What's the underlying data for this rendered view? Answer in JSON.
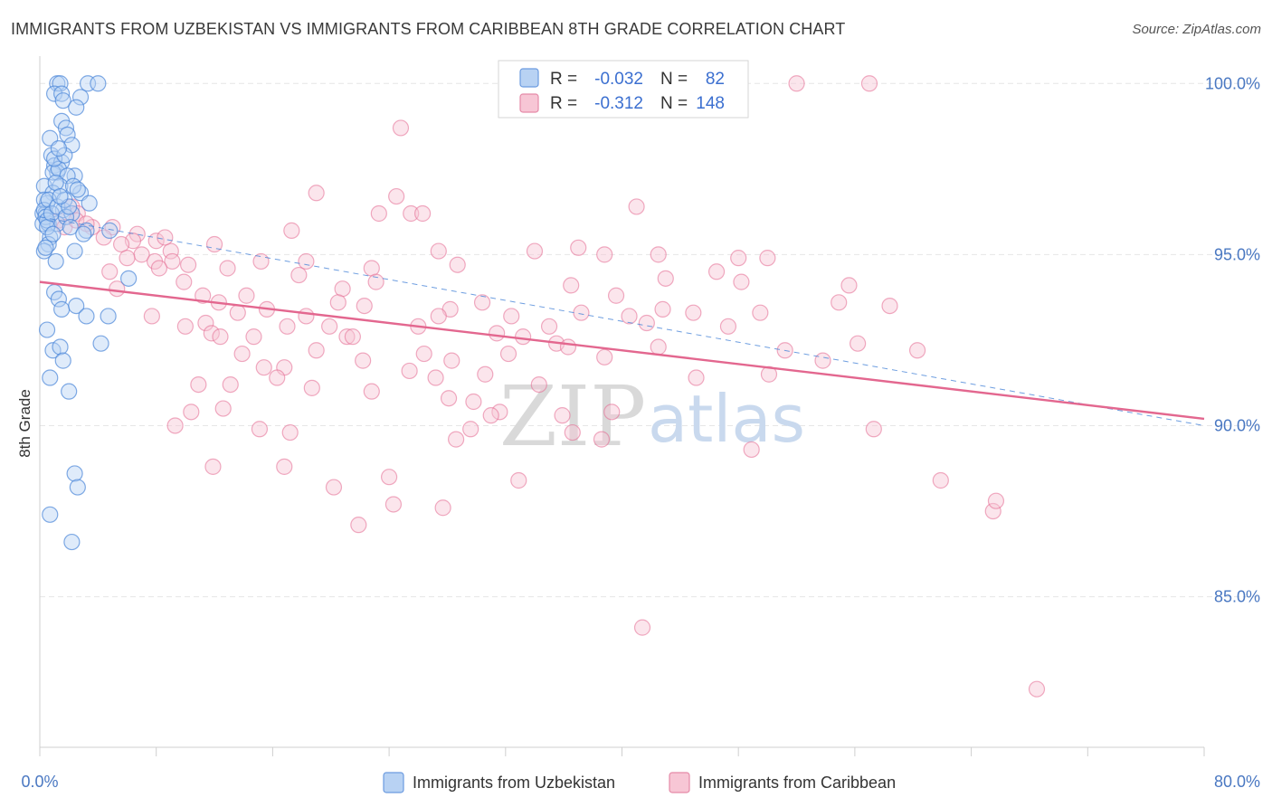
{
  "title": "IMMIGRANTS FROM UZBEKISTAN VS IMMIGRANTS FROM CARIBBEAN 8TH GRADE CORRELATION CHART",
  "source": "Source: ZipAtlas.com",
  "watermark": {
    "zip": "ZIP",
    "atlas": "atlas"
  },
  "colors": {
    "blue": "#4a86d8",
    "blue_fill": "#b8d2f3",
    "pink": "#e3678f",
    "pink_fill": "#f7c6d5",
    "axis_text": "#4a78c2",
    "grid": "#e6e6e6"
  },
  "stats": {
    "r_label": "R =",
    "n_label": "N =",
    "series1": {
      "r": "-0.032",
      "n": "82"
    },
    "series2": {
      "r": "-0.312",
      "n": "148"
    }
  },
  "chart_data": {
    "type": "scatter",
    "title": "IMMIGRANTS FROM UZBEKISTAN VS IMMIGRANTS FROM CARIBBEAN 8TH GRADE CORRELATION CHART",
    "xlabel": "",
    "ylabel": "8th Grade",
    "xlim": [
      0,
      80
    ],
    "ylim": [
      80.6,
      100.8
    ],
    "x_tick_labels": [
      "0.0%",
      "80.0%"
    ],
    "y_ticks": [
      85,
      90,
      95,
      100
    ],
    "y_tick_labels": [
      "85.0%",
      "90.0%",
      "95.0%",
      "100.0%"
    ],
    "legend": [
      "Immigrants from Uzbekistan",
      "Immigrants from Caribbean"
    ],
    "series": [
      {
        "name": "Immigrants from Uzbekistan",
        "color": "#4a86d8",
        "trend": {
          "x": [
            0,
            80
          ],
          "y": [
            96.1,
            90.0
          ],
          "style": "dashed"
        },
        "points": [
          [
            1.2,
            100.0
          ],
          [
            1.4,
            100.0
          ],
          [
            3.3,
            100.0
          ],
          [
            4.0,
            100.0
          ],
          [
            1.0,
            99.7
          ],
          [
            1.5,
            99.7
          ],
          [
            2.8,
            99.6
          ],
          [
            1.6,
            99.5
          ],
          [
            1.5,
            98.9
          ],
          [
            1.8,
            98.7
          ],
          [
            0.7,
            98.4
          ],
          [
            1.9,
            98.5
          ],
          [
            2.2,
            98.2
          ],
          [
            0.8,
            97.9
          ],
          [
            1.0,
            97.6
          ],
          [
            1.5,
            97.7
          ],
          [
            1.2,
            97.4
          ],
          [
            0.9,
            97.4
          ],
          [
            1.3,
            97.5
          ],
          [
            2.4,
            97.3
          ],
          [
            1.9,
            97.3
          ],
          [
            0.3,
            97.0
          ],
          [
            1.4,
            97.0
          ],
          [
            0.9,
            96.8
          ],
          [
            2.8,
            96.8
          ],
          [
            3.4,
            96.5
          ],
          [
            0.5,
            96.5
          ],
          [
            0.2,
            96.2
          ],
          [
            0.4,
            96.2
          ],
          [
            1.6,
            96.3
          ],
          [
            2.2,
            96.2
          ],
          [
            0.2,
            95.9
          ],
          [
            0.6,
            95.9
          ],
          [
            1.2,
            95.9
          ],
          [
            3.2,
            95.7
          ],
          [
            4.8,
            95.7
          ],
          [
            0.7,
            95.5
          ],
          [
            0.6,
            95.3
          ],
          [
            0.3,
            95.1
          ],
          [
            2.4,
            95.1
          ],
          [
            1.1,
            94.8
          ],
          [
            6.1,
            94.3
          ],
          [
            1.0,
            93.9
          ],
          [
            1.3,
            93.7
          ],
          [
            1.5,
            93.4
          ],
          [
            2.5,
            93.5
          ],
          [
            3.2,
            93.2
          ],
          [
            4.7,
            93.2
          ],
          [
            0.5,
            92.8
          ],
          [
            4.2,
            92.4
          ],
          [
            0.9,
            92.2
          ],
          [
            1.4,
            92.3
          ],
          [
            1.6,
            91.9
          ],
          [
            0.7,
            91.4
          ],
          [
            2.0,
            91.0
          ],
          [
            2.4,
            88.6
          ],
          [
            2.6,
            88.2
          ],
          [
            0.7,
            87.4
          ],
          [
            2.2,
            86.6
          ],
          [
            0.3,
            96.6
          ],
          [
            0.3,
            96.3
          ],
          [
            0.4,
            96.1
          ],
          [
            0.5,
            96.0
          ],
          [
            0.5,
            95.8
          ],
          [
            0.6,
            96.6
          ],
          [
            0.8,
            96.2
          ],
          [
            1.0,
            97.8
          ],
          [
            1.1,
            97.1
          ],
          [
            1.2,
            96.4
          ],
          [
            1.7,
            96.6
          ],
          [
            1.8,
            96.1
          ],
          [
            2.0,
            96.4
          ],
          [
            2.1,
            95.8
          ],
          [
            2.3,
            97.0
          ],
          [
            2.6,
            96.9
          ],
          [
            3.0,
            95.6
          ],
          [
            0.4,
            95.2
          ],
          [
            0.9,
            95.6
          ],
          [
            1.4,
            96.7
          ],
          [
            1.7,
            97.9
          ],
          [
            2.5,
            99.3
          ],
          [
            1.3,
            98.1
          ]
        ]
      },
      {
        "name": "Immigrants from Caribbean",
        "color": "#e3678f",
        "trend": {
          "x": [
            0,
            80
          ],
          "y": [
            94.2,
            90.2
          ],
          "style": "solid"
        },
        "points": [
          [
            52.0,
            100.0
          ],
          [
            57.0,
            100.0
          ],
          [
            24.8,
            98.7
          ],
          [
            19.0,
            96.8
          ],
          [
            24.5,
            96.7
          ],
          [
            41.0,
            96.4
          ],
          [
            23.3,
            96.2
          ],
          [
            25.5,
            96.2
          ],
          [
            26.3,
            96.2
          ],
          [
            2.2,
            96.4
          ],
          [
            2.6,
            96.2
          ],
          [
            3.6,
            95.8
          ],
          [
            5.0,
            95.8
          ],
          [
            6.7,
            95.6
          ],
          [
            17.3,
            95.7
          ],
          [
            6.4,
            95.4
          ],
          [
            8.0,
            95.4
          ],
          [
            9.0,
            95.1
          ],
          [
            12.0,
            95.3
          ],
          [
            27.4,
            95.1
          ],
          [
            37.0,
            95.2
          ],
          [
            34.0,
            95.1
          ],
          [
            38.8,
            95.0
          ],
          [
            42.5,
            95.0
          ],
          [
            18.3,
            94.8
          ],
          [
            22.8,
            94.6
          ],
          [
            28.7,
            94.7
          ],
          [
            48.0,
            94.9
          ],
          [
            50.0,
            94.9
          ],
          [
            15.2,
            94.8
          ],
          [
            7.0,
            95.0
          ],
          [
            7.9,
            94.8
          ],
          [
            9.1,
            94.8
          ],
          [
            8.2,
            94.6
          ],
          [
            4.8,
            94.5
          ],
          [
            17.8,
            94.4
          ],
          [
            12.9,
            94.6
          ],
          [
            9.9,
            94.2
          ],
          [
            5.3,
            94.0
          ],
          [
            20.8,
            94.0
          ],
          [
            23.1,
            94.2
          ],
          [
            36.5,
            94.1
          ],
          [
            46.5,
            94.5
          ],
          [
            43.0,
            94.3
          ],
          [
            55.6,
            94.1
          ],
          [
            48.2,
            94.2
          ],
          [
            39.6,
            93.8
          ],
          [
            14.2,
            93.8
          ],
          [
            20.5,
            93.6
          ],
          [
            12.3,
            93.6
          ],
          [
            11.2,
            93.8
          ],
          [
            22.3,
            93.5
          ],
          [
            28.2,
            93.4
          ],
          [
            30.4,
            93.6
          ],
          [
            27.4,
            93.2
          ],
          [
            32.4,
            93.2
          ],
          [
            37.2,
            93.3
          ],
          [
            40.5,
            93.2
          ],
          [
            42.8,
            93.4
          ],
          [
            49.5,
            93.3
          ],
          [
            54.9,
            93.6
          ],
          [
            58.4,
            93.5
          ],
          [
            7.7,
            93.2
          ],
          [
            15.6,
            93.4
          ],
          [
            11.4,
            93.0
          ],
          [
            10.0,
            92.9
          ],
          [
            17.0,
            92.9
          ],
          [
            19.9,
            92.9
          ],
          [
            11.8,
            92.7
          ],
          [
            12.4,
            92.6
          ],
          [
            14.7,
            92.6
          ],
          [
            21.1,
            92.6
          ],
          [
            21.5,
            92.6
          ],
          [
            32.2,
            92.1
          ],
          [
            33.2,
            92.6
          ],
          [
            35.5,
            92.4
          ],
          [
            36.3,
            92.3
          ],
          [
            38.8,
            92.0
          ],
          [
            42.5,
            92.3
          ],
          [
            13.9,
            92.1
          ],
          [
            16.8,
            91.7
          ],
          [
            15.4,
            91.7
          ],
          [
            19.0,
            92.2
          ],
          [
            22.2,
            91.9
          ],
          [
            26.4,
            92.1
          ],
          [
            28.3,
            91.9
          ],
          [
            30.6,
            91.5
          ],
          [
            25.4,
            91.6
          ],
          [
            27.2,
            91.4
          ],
          [
            13.1,
            91.2
          ],
          [
            16.3,
            91.4
          ],
          [
            10.9,
            91.2
          ],
          [
            18.7,
            91.1
          ],
          [
            22.8,
            91.0
          ],
          [
            28.1,
            90.8
          ],
          [
            29.8,
            90.7
          ],
          [
            34.3,
            91.2
          ],
          [
            45.1,
            91.4
          ],
          [
            50.1,
            91.5
          ],
          [
            10.4,
            90.4
          ],
          [
            12.6,
            90.5
          ],
          [
            31.6,
            90.4
          ],
          [
            31.0,
            90.3
          ],
          [
            35.9,
            90.3
          ],
          [
            39.3,
            90.4
          ],
          [
            9.3,
            90.0
          ],
          [
            15.1,
            89.9
          ],
          [
            17.2,
            89.8
          ],
          [
            29.6,
            89.9
          ],
          [
            28.6,
            89.6
          ],
          [
            36.6,
            89.8
          ],
          [
            38.6,
            89.6
          ],
          [
            57.3,
            89.9
          ],
          [
            48.9,
            89.3
          ],
          [
            11.9,
            88.8
          ],
          [
            16.8,
            88.8
          ],
          [
            24.0,
            88.5
          ],
          [
            32.9,
            88.4
          ],
          [
            20.2,
            88.2
          ],
          [
            61.9,
            88.4
          ],
          [
            27.7,
            87.6
          ],
          [
            24.3,
            87.7
          ],
          [
            65.5,
            87.5
          ],
          [
            65.7,
            87.8
          ],
          [
            21.9,
            87.1
          ],
          [
            41.4,
            84.1
          ],
          [
            68.5,
            82.3
          ],
          [
            1.3,
            96.0
          ],
          [
            1.7,
            95.8
          ],
          [
            2.5,
            96.0
          ],
          [
            3.2,
            95.9
          ],
          [
            4.4,
            95.5
          ],
          [
            5.6,
            95.3
          ],
          [
            6.0,
            94.9
          ],
          [
            8.6,
            95.5
          ],
          [
            10.2,
            94.7
          ],
          [
            13.6,
            93.3
          ],
          [
            18.3,
            93.2
          ],
          [
            26.0,
            92.9
          ],
          [
            31.4,
            92.7
          ],
          [
            35.0,
            92.9
          ],
          [
            41.7,
            93.0
          ],
          [
            44.9,
            93.3
          ],
          [
            47.3,
            92.9
          ],
          [
            51.2,
            92.2
          ],
          [
            53.8,
            91.9
          ],
          [
            56.2,
            92.4
          ],
          [
            60.3,
            92.2
          ]
        ]
      }
    ]
  }
}
